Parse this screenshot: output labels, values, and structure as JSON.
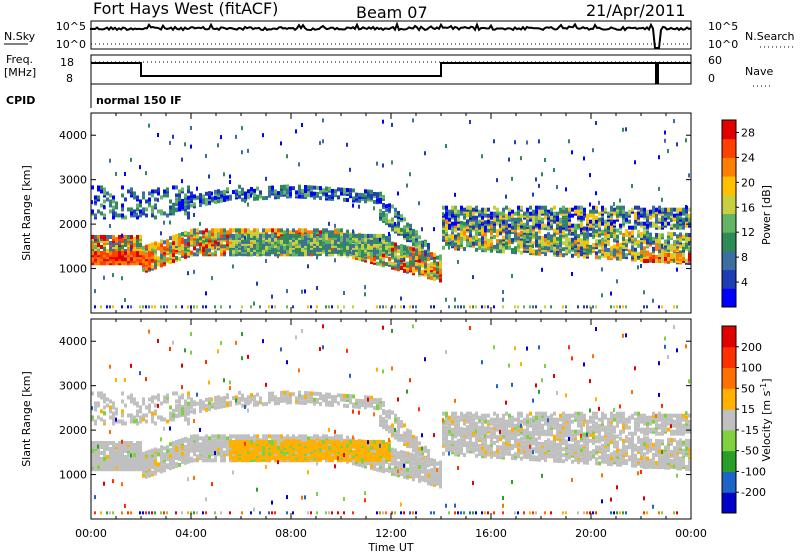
{
  "header": {
    "station": "Fort Hays West (fitACF)",
    "beam": "Beam 07",
    "date": "21/Apr/2011"
  },
  "strips": {
    "nsky_label": "N.Sky",
    "nsearch_label": "N.Search",
    "freq_label_1": "Freq.",
    "freq_label_2": "[MHz]",
    "nave_label": "Nave",
    "cpid_label": "CPID",
    "cpid_value": "normal 150 IF",
    "noise_ticks_left": [
      "10^5",
      "10^0"
    ],
    "noise_ticks_right": [
      "10^5",
      "10^0"
    ],
    "freq_ticks": [
      "18",
      "8"
    ],
    "nave_ticks": [
      "60",
      "0"
    ]
  },
  "chart_data": [
    {
      "type": "heatmap",
      "panel": "power",
      "ylabel": "Slant Range [km]",
      "ylim": [
        0,
        4500
      ],
      "y_ticks": [
        "1000",
        "2000",
        "3000",
        "4000"
      ],
      "xlim_hours": [
        0,
        24
      ],
      "x_tick_labels": [
        "00:00",
        "04:00",
        "08:00",
        "12:00",
        "16:00",
        "20:00",
        "00:00"
      ],
      "x_tick_hours": [
        0,
        4,
        8,
        12,
        16,
        20,
        24
      ],
      "colorbar": {
        "label": "Power [dB]",
        "ticks": [
          "28",
          "24",
          "20",
          "16",
          "12",
          "8",
          "4"
        ],
        "tick_values": [
          28,
          24,
          20,
          16,
          12,
          8,
          4
        ],
        "range": [
          0,
          30
        ],
        "colors": [
          "#0000ff",
          "#1e3cb4",
          "#3c6ea0",
          "#2e8b57",
          "#63b563",
          "#c8d040",
          "#ffc000",
          "#ff8000",
          "#ff4000",
          "#e00000"
        ]
      }
    },
    {
      "type": "heatmap",
      "panel": "velocity",
      "ylabel": "Slant Range [km]",
      "xlabel": "Time UT",
      "ylim": [
        0,
        4500
      ],
      "y_ticks": [
        "1000",
        "2000",
        "3000",
        "4000"
      ],
      "xlim_hours": [
        0,
        24
      ],
      "x_tick_labels": [
        "00:00",
        "04:00",
        "08:00",
        "12:00",
        "16:00",
        "20:00",
        "00:00"
      ],
      "x_tick_hours": [
        0,
        4,
        8,
        12,
        16,
        20,
        24
      ],
      "colorbar": {
        "label": "Velocity [m s",
        "label_sup": "-1",
        "label_end": "]",
        "ticks": [
          "200",
          "100",
          "50",
          "15",
          "-15",
          "-50",
          "-100",
          "-200"
        ],
        "colors": [
          "#0000c8",
          "#1e64c8",
          "#28a028",
          "#80d040",
          "#c0c0c0",
          "#ffb000",
          "#ff7000",
          "#ff3000",
          "#e00000"
        ]
      }
    }
  ]
}
